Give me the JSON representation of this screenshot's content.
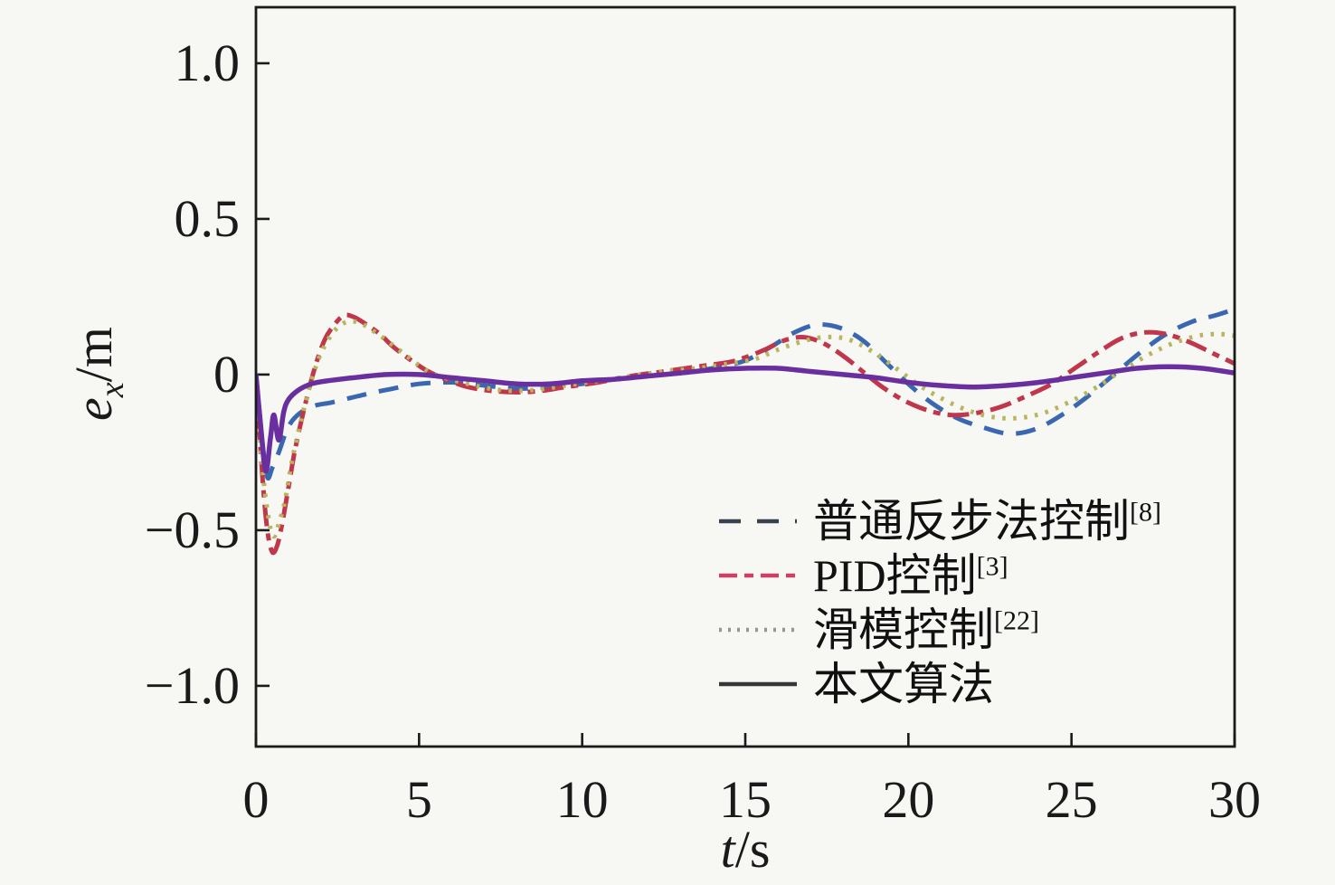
{
  "figure": {
    "background": "#f7f7f4",
    "frame_color": "#1a1a1a"
  },
  "axes": {
    "x": {
      "label_main": "t",
      "label_unit": "/s",
      "min": 0,
      "max": 30,
      "ticks": [
        {
          "v": 0,
          "label": "0"
        },
        {
          "v": 5,
          "label": "5"
        },
        {
          "v": 10,
          "label": "10"
        },
        {
          "v": 15,
          "label": "15"
        },
        {
          "v": 20,
          "label": "20"
        },
        {
          "v": 25,
          "label": "25"
        },
        {
          "v": 30,
          "label": "30"
        }
      ]
    },
    "y": {
      "label_main": "e",
      "label_sub": "x",
      "label_unit": "/m",
      "min": -1.195,
      "max": 1.18,
      "ticks": [
        {
          "v": 1.0,
          "label": "1.0"
        },
        {
          "v": 0.5,
          "label": "0.5"
        },
        {
          "v": 0,
          "label": "0"
        },
        {
          "v": -0.5,
          "label": "−0.5"
        },
        {
          "v": -1.0,
          "label": "−1.0"
        }
      ]
    }
  },
  "chart_data": {
    "type": "line",
    "title": "",
    "xlabel": "t/s",
    "ylabel": "ex/m",
    "xlim": [
      0,
      30
    ],
    "ylim": [
      -1.195,
      1.18
    ],
    "grid": false,
    "legend_position": "inside-lower-right",
    "series": [
      {
        "name": "普通反步法控制",
        "ref": "[8]",
        "style": "dashed",
        "color": "#3a68b0",
        "legend_color": "#39404f",
        "width": 5,
        "points": [
          [
            0,
            0
          ],
          [
            0.2,
            -0.22
          ],
          [
            0.35,
            -0.33
          ],
          [
            0.5,
            -0.3
          ],
          [
            0.7,
            -0.25
          ],
          [
            0.9,
            -0.19
          ],
          [
            1.1,
            -0.15
          ],
          [
            1.4,
            -0.12
          ],
          [
            1.8,
            -0.1
          ],
          [
            2.3,
            -0.09
          ],
          [
            2.9,
            -0.075
          ],
          [
            3.5,
            -0.06
          ],
          [
            4.2,
            -0.045
          ],
          [
            5,
            -0.03
          ],
          [
            6,
            -0.025
          ],
          [
            7,
            -0.035
          ],
          [
            8,
            -0.045
          ],
          [
            9,
            -0.04
          ],
          [
            10,
            -0.03
          ],
          [
            11,
            -0.015
          ],
          [
            12,
            -0.005
          ],
          [
            13,
            0.005
          ],
          [
            14,
            0.02
          ],
          [
            15,
            0.045
          ],
          [
            15.8,
            0.09
          ],
          [
            16.5,
            0.135
          ],
          [
            17.2,
            0.16
          ],
          [
            17.9,
            0.15
          ],
          [
            18.6,
            0.11
          ],
          [
            19.3,
            0.04
          ],
          [
            20,
            -0.03
          ],
          [
            20.7,
            -0.09
          ],
          [
            21.5,
            -0.14
          ],
          [
            22.3,
            -0.17
          ],
          [
            23.1,
            -0.19
          ],
          [
            23.9,
            -0.175
          ],
          [
            24.7,
            -0.13
          ],
          [
            25.5,
            -0.07
          ],
          [
            26.3,
            0.0
          ],
          [
            27.1,
            0.07
          ],
          [
            27.9,
            0.13
          ],
          [
            28.7,
            0.17
          ],
          [
            29.4,
            0.19
          ],
          [
            30,
            0.21
          ]
        ]
      },
      {
        "name": "PID控制",
        "ref": "[3]",
        "style": "dashdot",
        "color": "#c0364a",
        "legend_color": "#cf3f63",
        "width": 5,
        "points": [
          [
            0,
            0
          ],
          [
            0.2,
            -0.33
          ],
          [
            0.35,
            -0.5
          ],
          [
            0.5,
            -0.57
          ],
          [
            0.65,
            -0.55
          ],
          [
            0.8,
            -0.48
          ],
          [
            1.0,
            -0.36
          ],
          [
            1.2,
            -0.24
          ],
          [
            1.5,
            -0.1
          ],
          [
            1.8,
            0.02
          ],
          [
            2.1,
            0.11
          ],
          [
            2.4,
            0.16
          ],
          [
            2.7,
            0.19
          ],
          [
            3.0,
            0.185
          ],
          [
            3.4,
            0.16
          ],
          [
            3.8,
            0.13
          ],
          [
            4.2,
            0.09
          ],
          [
            4.7,
            0.05
          ],
          [
            5.2,
            0.015
          ],
          [
            5.7,
            -0.01
          ],
          [
            6.5,
            -0.04
          ],
          [
            7.5,
            -0.055
          ],
          [
            8.5,
            -0.055
          ],
          [
            9.5,
            -0.04
          ],
          [
            10.5,
            -0.025
          ],
          [
            11.5,
            -0.005
          ],
          [
            12.5,
            0.01
          ],
          [
            13.5,
            0.025
          ],
          [
            14.5,
            0.04
          ],
          [
            15,
            0.055
          ],
          [
            15.6,
            0.08
          ],
          [
            16.2,
            0.11
          ],
          [
            16.8,
            0.12
          ],
          [
            17.4,
            0.1
          ],
          [
            18,
            0.06
          ],
          [
            18.6,
            0.01
          ],
          [
            19.2,
            -0.04
          ],
          [
            19.9,
            -0.085
          ],
          [
            20.6,
            -0.115
          ],
          [
            21.3,
            -0.13
          ],
          [
            22,
            -0.125
          ],
          [
            22.8,
            -0.105
          ],
          [
            23.6,
            -0.07
          ],
          [
            24.4,
            -0.03
          ],
          [
            25.1,
            0.02
          ],
          [
            25.8,
            0.07
          ],
          [
            26.5,
            0.115
          ],
          [
            27.2,
            0.135
          ],
          [
            27.9,
            0.13
          ],
          [
            28.6,
            0.105
          ],
          [
            29.3,
            0.07
          ],
          [
            30,
            0.035
          ]
        ]
      },
      {
        "name": "滑模控制",
        "ref": "[22]",
        "style": "dotted",
        "color": "#b9b45e",
        "legend_color": "#98968c",
        "width": 5,
        "points": [
          [
            0,
            0
          ],
          [
            0.2,
            -0.3
          ],
          [
            0.4,
            -0.47
          ],
          [
            0.55,
            -0.52
          ],
          [
            0.7,
            -0.48
          ],
          [
            0.9,
            -0.4
          ],
          [
            1.1,
            -0.28
          ],
          [
            1.4,
            -0.14
          ],
          [
            1.7,
            -0.02
          ],
          [
            2.0,
            0.07
          ],
          [
            2.4,
            0.14
          ],
          [
            2.8,
            0.17
          ],
          [
            3.2,
            0.165
          ],
          [
            3.6,
            0.14
          ],
          [
            4.0,
            0.11
          ],
          [
            4.5,
            0.07
          ],
          [
            5,
            0.03
          ],
          [
            5.5,
            0.0
          ],
          [
            6.5,
            -0.03
          ],
          [
            7.5,
            -0.05
          ],
          [
            8.5,
            -0.05
          ],
          [
            9.5,
            -0.035
          ],
          [
            10.5,
            -0.02
          ],
          [
            11.5,
            -0.005
          ],
          [
            12.5,
            0.01
          ],
          [
            13.5,
            0.02
          ],
          [
            14.5,
            0.035
          ],
          [
            15.3,
            0.05
          ],
          [
            16,
            0.08
          ],
          [
            16.7,
            0.105
          ],
          [
            17.4,
            0.12
          ],
          [
            18.1,
            0.115
          ],
          [
            18.8,
            0.08
          ],
          [
            19.5,
            0.03
          ],
          [
            20.2,
            -0.025
          ],
          [
            20.9,
            -0.07
          ],
          [
            21.7,
            -0.11
          ],
          [
            22.5,
            -0.135
          ],
          [
            23.3,
            -0.14
          ],
          [
            24.1,
            -0.125
          ],
          [
            24.9,
            -0.09
          ],
          [
            25.7,
            -0.045
          ],
          [
            26.5,
            0.01
          ],
          [
            27.3,
            0.06
          ],
          [
            28.1,
            0.1
          ],
          [
            28.9,
            0.125
          ],
          [
            29.5,
            0.13
          ],
          [
            30,
            0.125
          ]
        ]
      },
      {
        "name": "本文算法",
        "ref": "",
        "style": "solid",
        "color": "#6a2f9e",
        "legend_color": "#363636",
        "width": 5.5,
        "points": [
          [
            0,
            0
          ],
          [
            0.15,
            -0.17
          ],
          [
            0.3,
            -0.31
          ],
          [
            0.45,
            -0.2
          ],
          [
            0.55,
            -0.13
          ],
          [
            0.7,
            -0.21
          ],
          [
            0.85,
            -0.12
          ],
          [
            1.0,
            -0.08
          ],
          [
            1.3,
            -0.05
          ],
          [
            1.7,
            -0.03
          ],
          [
            2.2,
            -0.02
          ],
          [
            3,
            -0.01
          ],
          [
            4,
            0.0
          ],
          [
            5,
            0.0
          ],
          [
            6,
            -0.01
          ],
          [
            7,
            -0.02
          ],
          [
            8,
            -0.03
          ],
          [
            9,
            -0.03
          ],
          [
            10,
            -0.02
          ],
          [
            11,
            -0.015
          ],
          [
            12,
            -0.005
          ],
          [
            13,
            0.005
          ],
          [
            14,
            0.015
          ],
          [
            15,
            0.02
          ],
          [
            16,
            0.02
          ],
          [
            17,
            0.01
          ],
          [
            18,
            0.0
          ],
          [
            19,
            -0.01
          ],
          [
            20,
            -0.025
          ],
          [
            21,
            -0.035
          ],
          [
            22,
            -0.04
          ],
          [
            23,
            -0.035
          ],
          [
            24,
            -0.025
          ],
          [
            25,
            -0.01
          ],
          [
            26,
            0.005
          ],
          [
            27,
            0.02
          ],
          [
            28,
            0.025
          ],
          [
            29,
            0.02
          ],
          [
            30,
            0.005
          ]
        ]
      }
    ]
  }
}
